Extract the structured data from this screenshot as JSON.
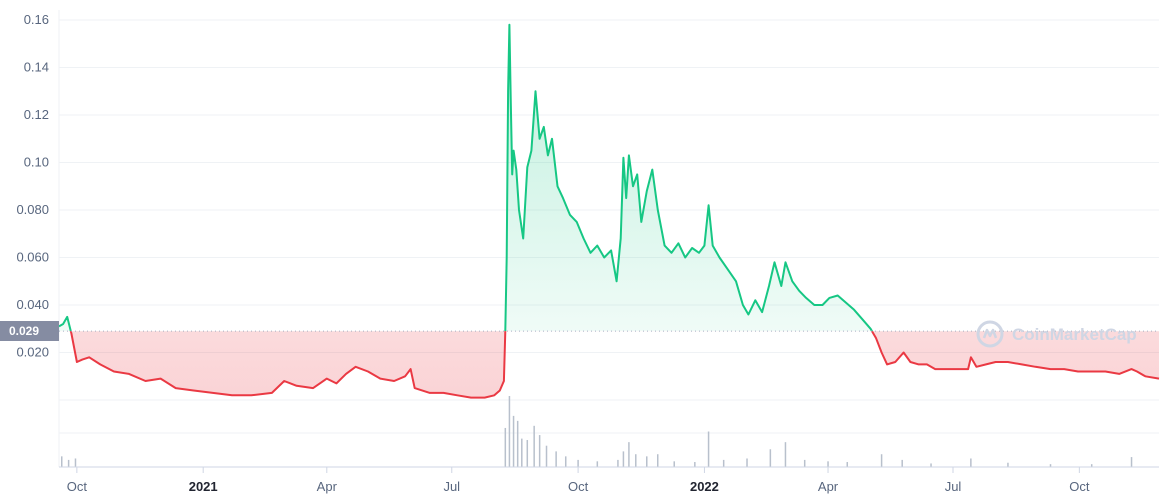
{
  "chart_data": {
    "type": "area",
    "baseline": 0.029,
    "baseline_label": "0.029",
    "ylim": [
      0.0,
      0.16
    ],
    "yticks": [
      {
        "value": 0.16,
        "label": "0.16"
      },
      {
        "value": 0.14,
        "label": "0.14"
      },
      {
        "value": 0.12,
        "label": "0.12"
      },
      {
        "value": 0.1,
        "label": "0.10"
      },
      {
        "value": 0.08,
        "label": "0.080"
      },
      {
        "value": 0.06,
        "label": "0.060"
      },
      {
        "value": 0.04,
        "label": "0.040"
      },
      {
        "value": 0.02,
        "label": "0.020"
      }
    ],
    "xlim": [
      "2020-09-18",
      "2022-11-28"
    ],
    "xticks": [
      {
        "date": "2020-10-01",
        "label": "Oct",
        "bold": false
      },
      {
        "date": "2021-01-01",
        "label": "2021",
        "bold": true
      },
      {
        "date": "2021-04-01",
        "label": "Apr",
        "bold": false
      },
      {
        "date": "2021-07-01",
        "label": "Jul",
        "bold": false
      },
      {
        "date": "2021-10-01",
        "label": "Oct",
        "bold": false
      },
      {
        "date": "2022-01-01",
        "label": "2022",
        "bold": true
      },
      {
        "date": "2022-04-01",
        "label": "Apr",
        "bold": false
      },
      {
        "date": "2022-07-01",
        "label": "Jul",
        "bold": false
      },
      {
        "date": "2022-10-01",
        "label": "Oct",
        "bold": false
      }
    ],
    "colors": {
      "up": "#16c784",
      "down": "#ea3943",
      "grid": "#eff2f5",
      "axis": "#58667e",
      "volume": "#b8c0cc",
      "badge": "#858ca2"
    },
    "series": [
      {
        "points": [
          [
            "2020-09-18",
            0.031
          ],
          [
            "2020-09-21",
            0.032
          ],
          [
            "2020-09-24",
            0.035
          ],
          [
            "2020-09-27",
            0.028
          ],
          [
            "2020-10-01",
            0.016
          ],
          [
            "2020-10-05",
            0.017
          ],
          [
            "2020-10-10",
            0.018
          ],
          [
            "2020-10-18",
            0.015
          ],
          [
            "2020-10-28",
            0.012
          ],
          [
            "2020-11-08",
            0.011
          ],
          [
            "2020-11-20",
            0.008
          ],
          [
            "2020-12-01",
            0.009
          ],
          [
            "2020-12-12",
            0.005
          ],
          [
            "2020-12-25",
            0.004
          ],
          [
            "2021-01-08",
            0.003
          ],
          [
            "2021-01-22",
            0.002
          ],
          [
            "2021-02-05",
            0.002
          ],
          [
            "2021-02-20",
            0.003
          ],
          [
            "2021-03-01",
            0.008
          ],
          [
            "2021-03-10",
            0.006
          ],
          [
            "2021-03-22",
            0.005
          ],
          [
            "2021-04-01",
            0.009
          ],
          [
            "2021-04-08",
            0.007
          ],
          [
            "2021-04-15",
            0.011
          ],
          [
            "2021-04-22",
            0.014
          ],
          [
            "2021-05-01",
            0.012
          ],
          [
            "2021-05-10",
            0.009
          ],
          [
            "2021-05-20",
            0.008
          ],
          [
            "2021-05-28",
            0.01
          ],
          [
            "2021-06-01",
            0.013
          ],
          [
            "2021-06-04",
            0.005
          ],
          [
            "2021-06-15",
            0.003
          ],
          [
            "2021-06-25",
            0.003
          ],
          [
            "2021-07-05",
            0.002
          ],
          [
            "2021-07-15",
            0.001
          ],
          [
            "2021-07-25",
            0.001
          ],
          [
            "2021-08-01",
            0.002
          ],
          [
            "2021-08-05",
            0.004
          ],
          [
            "2021-08-08",
            0.008
          ],
          [
            "2021-08-09",
            0.029
          ],
          [
            "2021-08-10",
            0.06
          ],
          [
            "2021-08-11",
            0.13
          ],
          [
            "2021-08-12",
            0.158
          ],
          [
            "2021-08-13",
            0.125
          ],
          [
            "2021-08-14",
            0.095
          ],
          [
            "2021-08-15",
            0.105
          ],
          [
            "2021-08-17",
            0.097
          ],
          [
            "2021-08-19",
            0.08
          ],
          [
            "2021-08-22",
            0.068
          ],
          [
            "2021-08-25",
            0.098
          ],
          [
            "2021-08-28",
            0.105
          ],
          [
            "2021-08-31",
            0.13
          ],
          [
            "2021-09-03",
            0.11
          ],
          [
            "2021-09-06",
            0.115
          ],
          [
            "2021-09-09",
            0.103
          ],
          [
            "2021-09-12",
            0.11
          ],
          [
            "2021-09-16",
            0.09
          ],
          [
            "2021-09-20",
            0.085
          ],
          [
            "2021-09-25",
            0.078
          ],
          [
            "2021-09-30",
            0.075
          ],
          [
            "2021-10-05",
            0.068
          ],
          [
            "2021-10-10",
            0.062
          ],
          [
            "2021-10-15",
            0.065
          ],
          [
            "2021-10-20",
            0.06
          ],
          [
            "2021-10-25",
            0.063
          ],
          [
            "2021-10-29",
            0.05
          ],
          [
            "2021-11-01",
            0.068
          ],
          [
            "2021-11-03",
            0.102
          ],
          [
            "2021-11-05",
            0.085
          ],
          [
            "2021-11-07",
            0.103
          ],
          [
            "2021-11-10",
            0.09
          ],
          [
            "2021-11-13",
            0.095
          ],
          [
            "2021-11-16",
            0.075
          ],
          [
            "2021-11-20",
            0.088
          ],
          [
            "2021-11-24",
            0.097
          ],
          [
            "2021-11-28",
            0.08
          ],
          [
            "2021-12-03",
            0.065
          ],
          [
            "2021-12-08",
            0.062
          ],
          [
            "2021-12-13",
            0.066
          ],
          [
            "2021-12-18",
            0.06
          ],
          [
            "2021-12-23",
            0.064
          ],
          [
            "2021-12-28",
            0.062
          ],
          [
            "2022-01-01",
            0.065
          ],
          [
            "2022-01-04",
            0.082
          ],
          [
            "2022-01-07",
            0.065
          ],
          [
            "2022-01-12",
            0.06
          ],
          [
            "2022-01-18",
            0.055
          ],
          [
            "2022-01-24",
            0.05
          ],
          [
            "2022-01-29",
            0.04
          ],
          [
            "2022-02-02",
            0.036
          ],
          [
            "2022-02-07",
            0.042
          ],
          [
            "2022-02-12",
            0.037
          ],
          [
            "2022-02-17",
            0.048
          ],
          [
            "2022-02-21",
            0.058
          ],
          [
            "2022-02-26",
            0.048
          ],
          [
            "2022-03-01",
            0.058
          ],
          [
            "2022-03-06",
            0.05
          ],
          [
            "2022-03-11",
            0.046
          ],
          [
            "2022-03-16",
            0.043
          ],
          [
            "2022-03-22",
            0.04
          ],
          [
            "2022-03-28",
            0.04
          ],
          [
            "2022-04-02",
            0.043
          ],
          [
            "2022-04-08",
            0.044
          ],
          [
            "2022-04-14",
            0.041
          ],
          [
            "2022-04-20",
            0.038
          ],
          [
            "2022-04-26",
            0.034
          ],
          [
            "2022-05-02",
            0.03
          ],
          [
            "2022-05-06",
            0.026
          ],
          [
            "2022-05-10",
            0.02
          ],
          [
            "2022-05-14",
            0.015
          ],
          [
            "2022-05-20",
            0.016
          ],
          [
            "2022-05-26",
            0.02
          ],
          [
            "2022-05-31",
            0.016
          ],
          [
            "2022-06-06",
            0.015
          ],
          [
            "2022-06-12",
            0.015
          ],
          [
            "2022-06-18",
            0.013
          ],
          [
            "2022-06-24",
            0.013
          ],
          [
            "2022-06-30",
            0.013
          ],
          [
            "2022-07-06",
            0.013
          ],
          [
            "2022-07-12",
            0.013
          ],
          [
            "2022-07-14",
            0.018
          ],
          [
            "2022-07-18",
            0.014
          ],
          [
            "2022-07-25",
            0.015
          ],
          [
            "2022-08-01",
            0.016
          ],
          [
            "2022-08-10",
            0.016
          ],
          [
            "2022-08-20",
            0.015
          ],
          [
            "2022-08-30",
            0.014
          ],
          [
            "2022-09-10",
            0.013
          ],
          [
            "2022-09-20",
            0.013
          ],
          [
            "2022-09-30",
            0.012
          ],
          [
            "2022-10-10",
            0.012
          ],
          [
            "2022-10-20",
            0.012
          ],
          [
            "2022-10-30",
            0.011
          ],
          [
            "2022-11-08",
            0.013
          ],
          [
            "2022-11-12",
            0.012
          ],
          [
            "2022-11-18",
            0.01
          ],
          [
            "2022-11-28",
            0.009
          ]
        ]
      }
    ],
    "volume": [
      [
        "2020-09-20",
        0.15
      ],
      [
        "2020-09-25",
        0.1
      ],
      [
        "2020-09-30",
        0.12
      ],
      [
        "2021-08-09",
        0.55
      ],
      [
        "2021-08-12",
        1.0
      ],
      [
        "2021-08-15",
        0.72
      ],
      [
        "2021-08-18",
        0.65
      ],
      [
        "2021-08-21",
        0.4
      ],
      [
        "2021-08-25",
        0.38
      ],
      [
        "2021-08-30",
        0.58
      ],
      [
        "2021-09-03",
        0.45
      ],
      [
        "2021-09-08",
        0.3
      ],
      [
        "2021-09-15",
        0.22
      ],
      [
        "2021-09-22",
        0.15
      ],
      [
        "2021-10-01",
        0.1
      ],
      [
        "2021-10-15",
        0.08
      ],
      [
        "2021-10-30",
        0.1
      ],
      [
        "2021-11-03",
        0.22
      ],
      [
        "2021-11-07",
        0.35
      ],
      [
        "2021-11-12",
        0.18
      ],
      [
        "2021-11-20",
        0.15
      ],
      [
        "2021-11-28",
        0.18
      ],
      [
        "2021-12-10",
        0.08
      ],
      [
        "2021-12-25",
        0.07
      ],
      [
        "2022-01-04",
        0.5
      ],
      [
        "2022-01-15",
        0.1
      ],
      [
        "2022-02-01",
        0.12
      ],
      [
        "2022-02-18",
        0.25
      ],
      [
        "2022-03-01",
        0.35
      ],
      [
        "2022-03-15",
        0.1
      ],
      [
        "2022-04-01",
        0.08
      ],
      [
        "2022-04-15",
        0.07
      ],
      [
        "2022-05-10",
        0.18
      ],
      [
        "2022-05-25",
        0.1
      ],
      [
        "2022-06-15",
        0.05
      ],
      [
        "2022-07-14",
        0.12
      ],
      [
        "2022-08-10",
        0.06
      ],
      [
        "2022-09-10",
        0.04
      ],
      [
        "2022-10-10",
        0.04
      ],
      [
        "2022-11-08",
        0.14
      ]
    ]
  },
  "watermark": "CoinMarketCap"
}
